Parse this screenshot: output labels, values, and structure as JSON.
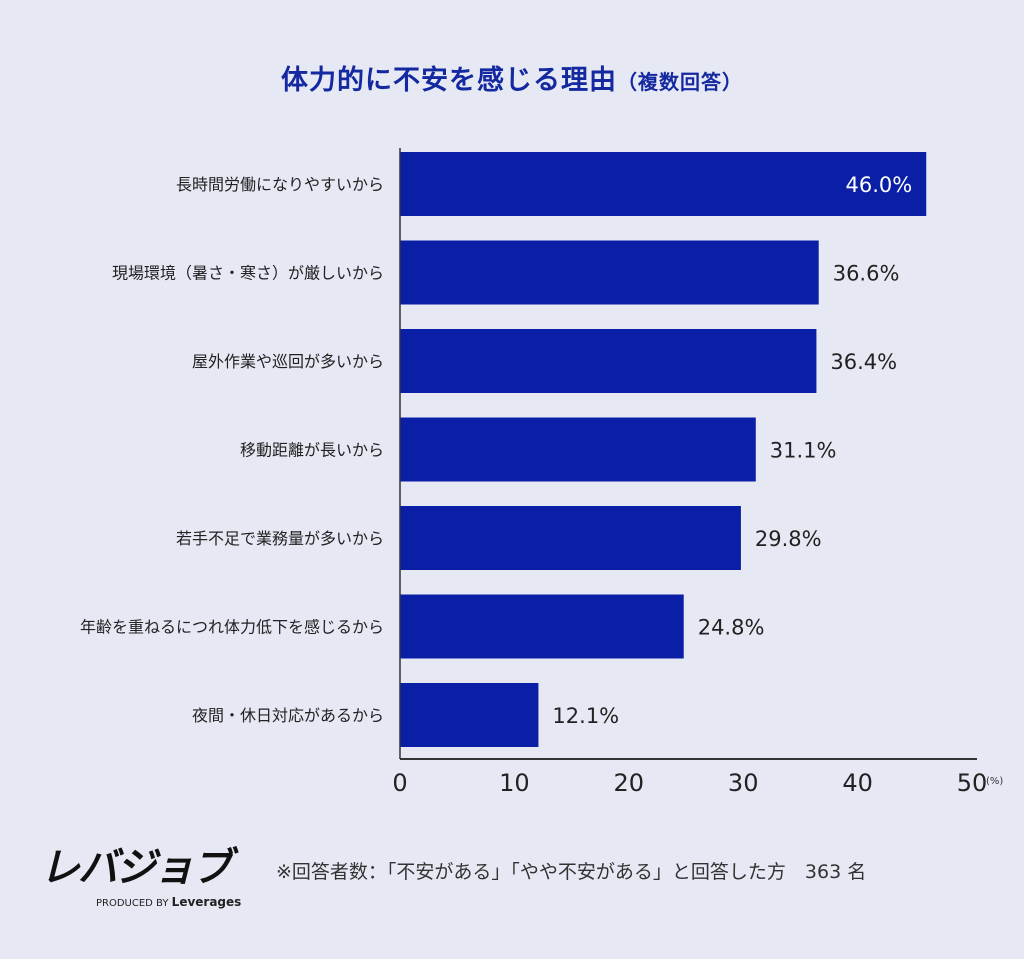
{
  "chart_data": {
    "type": "bar",
    "orientation": "horizontal",
    "title": "体力的に不安を感じる理由",
    "subtitle": "（複数回答）",
    "categories": [
      "長時間労働になりやすいから",
      "現場環境（暑さ・寒さ）が厳しいから",
      "屋外作業や巡回が多いから",
      "移動距離が長いから",
      "若手不足で業務量が多いから",
      "年齢を重ねるにつれ体力低下を感じるから",
      "夜間・休日対応があるから"
    ],
    "values": [
      46.0,
      36.6,
      36.4,
      31.1,
      29.8,
      24.8,
      12.1
    ],
    "data_labels": [
      "46.0%",
      "36.6%",
      "36.4%",
      "31.1%",
      "29.8%",
      "24.8%",
      "12.1%"
    ],
    "xlim": [
      0,
      50
    ],
    "xticks": [
      "0",
      "10",
      "20",
      "30",
      "40",
      "50"
    ],
    "xunit": "(%)",
    "grid": false,
    "bar_color": "#0a1ea6"
  },
  "footer": {
    "note": "※回答者数：「不安がある」「やや不安がある」と回答した方　363 名",
    "logo": "レバジョブ",
    "produced_by": "PRODUCED BY",
    "brand": "Leverages"
  }
}
